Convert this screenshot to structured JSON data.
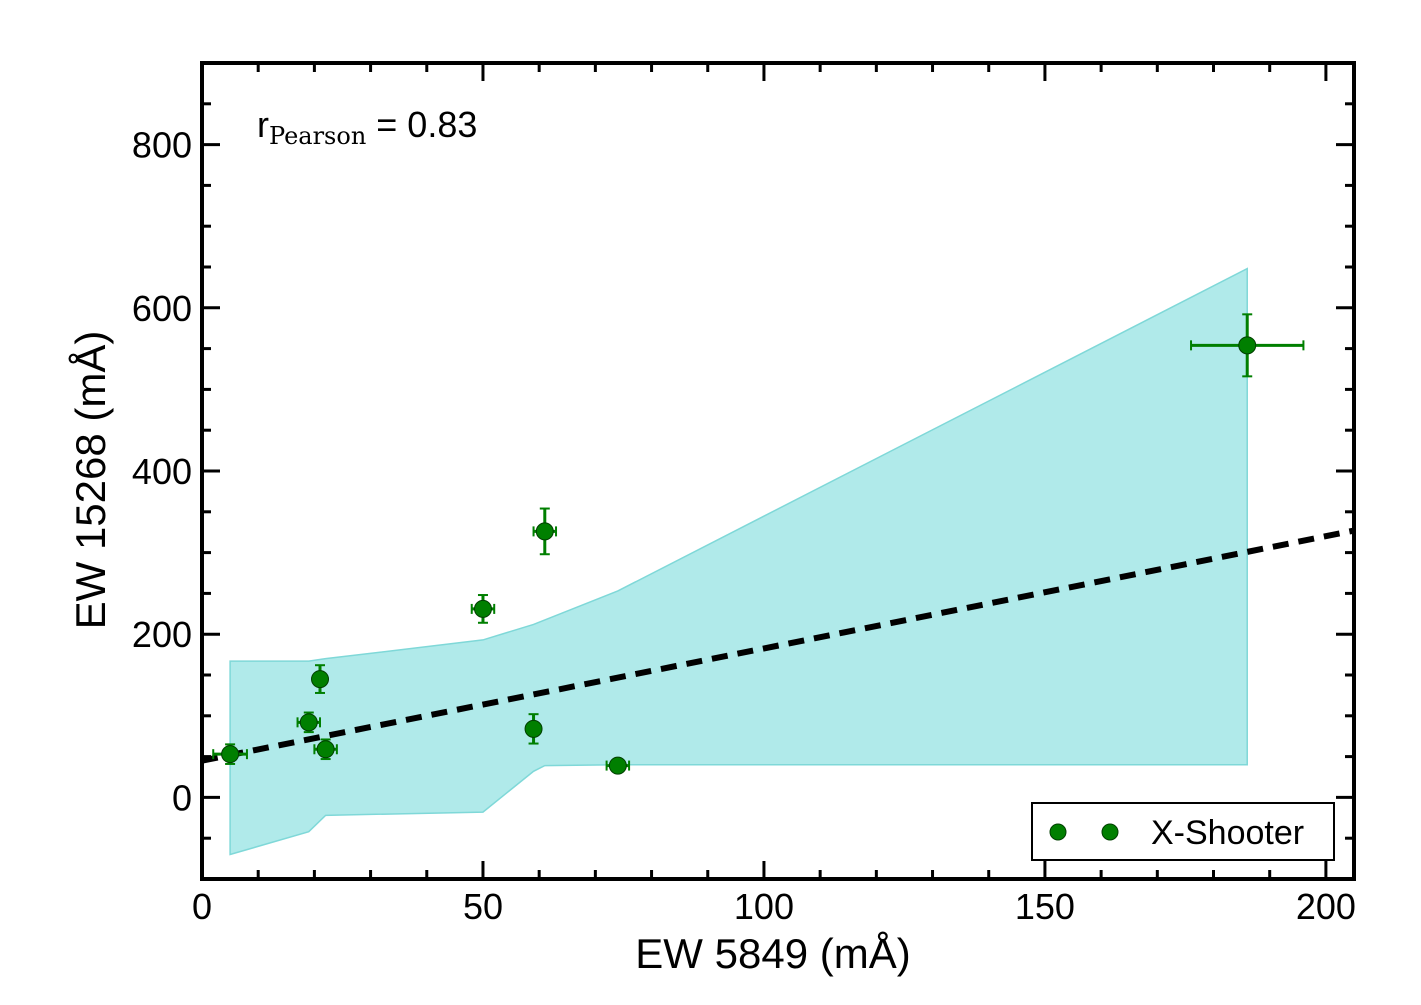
{
  "chart_data": {
    "type": "scatter",
    "xlabel": "EW 5849 (mÅ)",
    "ylabel": "EW 15268 (mÅ)",
    "xlim": [
      0,
      205
    ],
    "ylim": [
      -100,
      900
    ],
    "xticks": [
      0,
      50,
      100,
      150,
      200
    ],
    "yticks": [
      0,
      200,
      400,
      600,
      800
    ],
    "xtick_labels": [
      "0",
      "50",
      "100",
      "150",
      "200"
    ],
    "ytick_labels": [
      "0",
      "200",
      "400",
      "600",
      "800"
    ],
    "annotation": {
      "prefix": "r",
      "subscript": "Pearson",
      "suffix": " = 0.83"
    },
    "legend": {
      "label": "X-Shooter",
      "location": "lower-right"
    },
    "colors": {
      "points": "#007f00",
      "band_fill": "#b0eaea",
      "band_edge": "#7fd8d8",
      "fit_line": "#000000"
    },
    "series": [
      {
        "name": "X-Shooter",
        "points": [
          {
            "x": 5,
            "y": 53,
            "xerr": 3,
            "yerr": 12
          },
          {
            "x": 19,
            "y": 92,
            "xerr": 2,
            "yerr": 12
          },
          {
            "x": 21,
            "y": 145,
            "xerr": 1,
            "yerr": 17
          },
          {
            "x": 22,
            "y": 59,
            "xerr": 2,
            "yerr": 12
          },
          {
            "x": 50,
            "y": 231,
            "xerr": 2,
            "yerr": 17
          },
          {
            "x": 59,
            "y": 84,
            "xerr": 1,
            "yerr": 18
          },
          {
            "x": 61,
            "y": 326,
            "xerr": 2,
            "yerr": 28
          },
          {
            "x": 74,
            "y": 39,
            "xerr": 2,
            "yerr": 5
          },
          {
            "x": 186,
            "y": 554,
            "xerr": 10,
            "yerr": 38
          }
        ]
      }
    ],
    "fit_line": {
      "style": "dashed",
      "x": [
        0,
        205
      ],
      "y": [
        45,
        327
      ]
    },
    "band": {
      "upper": [
        [
          5,
          167
        ],
        [
          19,
          167
        ],
        [
          22,
          170
        ],
        [
          50,
          193
        ],
        [
          59,
          212
        ],
        [
          74,
          253
        ],
        [
          186,
          648
        ]
      ],
      "lower": [
        [
          5,
          -70
        ],
        [
          19,
          -42
        ],
        [
          22,
          -22
        ],
        [
          50,
          -18
        ],
        [
          59,
          32
        ],
        [
          61,
          39
        ],
        [
          74,
          40
        ],
        [
          186,
          40
        ]
      ]
    }
  }
}
